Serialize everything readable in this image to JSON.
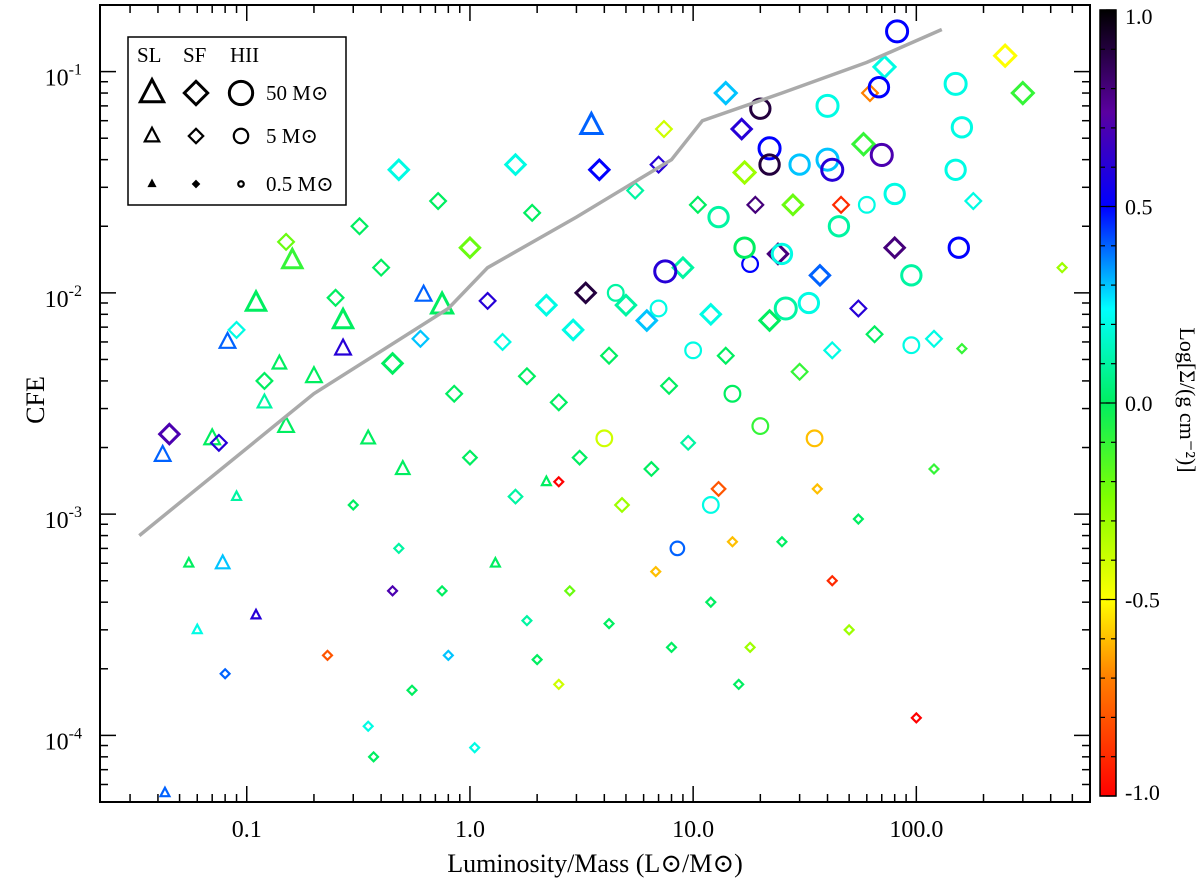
{
  "chart_data": {
    "type": "scatter",
    "title": "",
    "xlabel": "Luminosity/Mass (L⊙/M⊙)",
    "ylabel": "CFE",
    "xscale": "log",
    "yscale": "log",
    "xlim": [
      0.022,
      600
    ],
    "ylim": [
      5e-05,
      0.2
    ],
    "x_tick_labels": [
      "0.1",
      "1.0",
      "10.0",
      "100.0"
    ],
    "y_tick_labels": [
      {
        "base": "10",
        "exp": "-4"
      },
      {
        "base": "10",
        "exp": "-3"
      },
      {
        "base": "10",
        "exp": "-2"
      },
      {
        "base": "10",
        "exp": "-1"
      }
    ],
    "colorbar": {
      "label": "Log[Σ/(g cm⁻²)]",
      "range": [
        -1.0,
        1.0
      ],
      "tick_labels": [
        "1.0",
        "0.5",
        "0.0",
        "-0.5",
        "-1.0"
      ],
      "colormap": "rainbow"
    },
    "legend": {
      "position": "top-left",
      "headers": [
        "SL",
        "SF",
        "HII"
      ],
      "mass_labels": [
        "50 M⊙",
        "5 M⊙",
        "0.5 M⊙"
      ]
    },
    "upper_envelope_line": {
      "color": "#aaaaaa",
      "points": [
        {
          "x": 0.033,
          "y": 0.0008
        },
        {
          "x": 0.2,
          "y": 0.0035
        },
        {
          "x": 0.8,
          "y": 0.0085
        },
        {
          "x": 1.2,
          "y": 0.013
        },
        {
          "x": 3.0,
          "y": 0.022
        },
        {
          "x": 8.0,
          "y": 0.04
        },
        {
          "x": 11.0,
          "y": 0.06
        },
        {
          "x": 25.0,
          "y": 0.08
        },
        {
          "x": 60.0,
          "y": 0.11
        },
        {
          "x": 130.0,
          "y": 0.155
        }
      ]
    },
    "series": [
      {
        "name": "SL",
        "marker": "triangle",
        "points": [
          {
            "x": 0.042,
            "y": 0.00185,
            "c": 0.4,
            "m": 5
          },
          {
            "x": 0.07,
            "y": 0.0022,
            "c": 0.0,
            "m": 5
          },
          {
            "x": 0.082,
            "y": 0.006,
            "c": 0.4,
            "m": 5
          },
          {
            "x": 0.11,
            "y": 0.009,
            "c": 0.0,
            "m": 12
          },
          {
            "x": 0.16,
            "y": 0.014,
            "c": -0.1,
            "m": 12
          },
          {
            "x": 0.27,
            "y": 0.0075,
            "c": 0.0,
            "m": 12
          },
          {
            "x": 0.27,
            "y": 0.0056,
            "c": 0.6,
            "m": 5
          },
          {
            "x": 0.62,
            "y": 0.0098,
            "c": 0.4,
            "m": 5
          },
          {
            "x": 0.75,
            "y": 0.0088,
            "c": 0.0,
            "m": 18
          },
          {
            "x": 3.5,
            "y": 0.057,
            "c": 0.4,
            "m": 18
          },
          {
            "x": 0.12,
            "y": 0.0032,
            "c": 0.1,
            "m": 3
          },
          {
            "x": 0.15,
            "y": 0.0025,
            "c": 0.0,
            "m": 5
          },
          {
            "x": 0.2,
            "y": 0.0042,
            "c": 0.0,
            "m": 5
          },
          {
            "x": 0.09,
            "y": 0.0012,
            "c": 0.1,
            "m": 1
          },
          {
            "x": 0.055,
            "y": 0.0006,
            "c": 0.0,
            "m": 1
          },
          {
            "x": 0.078,
            "y": 0.0006,
            "c": 0.3,
            "m": 3
          },
          {
            "x": 0.11,
            "y": 0.00035,
            "c": 0.6,
            "m": 1
          },
          {
            "x": 0.06,
            "y": 0.0003,
            "c": 0.2,
            "m": 1
          },
          {
            "x": 0.043,
            "y": 5.5e-05,
            "c": 0.4,
            "m": 1
          },
          {
            "x": 1.3,
            "y": 0.0006,
            "c": 0.0,
            "m": 1
          },
          {
            "x": 2.2,
            "y": 0.0014,
            "c": 0.0,
            "m": 1
          },
          {
            "x": 0.35,
            "y": 0.0022,
            "c": 0.0,
            "m": 3
          },
          {
            "x": 0.5,
            "y": 0.0016,
            "c": 0.0,
            "m": 3
          },
          {
            "x": 0.14,
            "y": 0.0048,
            "c": 0.0,
            "m": 3
          }
        ]
      },
      {
        "name": "SF",
        "marker": "diamond",
        "points": [
          {
            "x": 0.045,
            "y": 0.0023,
            "c": 0.7,
            "m": 12
          },
          {
            "x": 0.075,
            "y": 0.0021,
            "c": 0.6,
            "m": 5
          },
          {
            "x": 0.15,
            "y": 0.017,
            "c": -0.2,
            "m": 5
          },
          {
            "x": 0.32,
            "y": 0.02,
            "c": 0.0,
            "m": 5
          },
          {
            "x": 0.48,
            "y": 0.036,
            "c": 0.2,
            "m": 12
          },
          {
            "x": 0.72,
            "y": 0.026,
            "c": 0.0,
            "m": 5
          },
          {
            "x": 1.0,
            "y": 0.016,
            "c": -0.2,
            "m": 12
          },
          {
            "x": 1.2,
            "y": 0.0092,
            "c": 0.6,
            "m": 5
          },
          {
            "x": 1.6,
            "y": 0.038,
            "c": 0.2,
            "m": 12
          },
          {
            "x": 1.9,
            "y": 0.023,
            "c": 0.0,
            "m": 5
          },
          {
            "x": 2.2,
            "y": 0.0088,
            "c": 0.2,
            "m": 12
          },
          {
            "x": 3.3,
            "y": 0.01,
            "c": 0.9,
            "m": 12
          },
          {
            "x": 3.8,
            "y": 0.036,
            "c": 0.5,
            "m": 12
          },
          {
            "x": 5.5,
            "y": 0.029,
            "c": 0.1,
            "m": 5
          },
          {
            "x": 7.0,
            "y": 0.038,
            "c": 0.6,
            "m": 5
          },
          {
            "x": 7.4,
            "y": 0.055,
            "c": -0.4,
            "m": 5
          },
          {
            "x": 10.5,
            "y": 0.025,
            "c": 0.0,
            "m": 5
          },
          {
            "x": 14.0,
            "y": 0.08,
            "c": 0.3,
            "m": 18
          },
          {
            "x": 16.5,
            "y": 0.055,
            "c": 0.6,
            "m": 12
          },
          {
            "x": 17.0,
            "y": 0.035,
            "c": -0.3,
            "m": 18
          },
          {
            "x": 19.0,
            "y": 0.025,
            "c": 0.8,
            "m": 5
          },
          {
            "x": 24.0,
            "y": 0.015,
            "c": 0.8,
            "m": 12
          },
          {
            "x": 28.0,
            "y": 0.025,
            "c": -0.2,
            "m": 12
          },
          {
            "x": 37.0,
            "y": 0.012,
            "c": 0.4,
            "m": 12
          },
          {
            "x": 46.0,
            "y": 0.025,
            "c": -0.9,
            "m": 5
          },
          {
            "x": 55.0,
            "y": 0.0085,
            "c": 0.6,
            "m": 5
          },
          {
            "x": 58.0,
            "y": 0.047,
            "c": -0.1,
            "m": 18
          },
          {
            "x": 62.0,
            "y": 0.08,
            "c": -0.7,
            "m": 5
          },
          {
            "x": 72.0,
            "y": 0.105,
            "c": 0.2,
            "m": 18
          },
          {
            "x": 80.0,
            "y": 0.016,
            "c": 0.8,
            "m": 12
          },
          {
            "x": 180.0,
            "y": 0.026,
            "c": 0.2,
            "m": 5
          },
          {
            "x": 250.0,
            "y": 0.118,
            "c": -0.5,
            "m": 18
          },
          {
            "x": 300.0,
            "y": 0.08,
            "c": -0.1,
            "m": 18
          },
          {
            "x": 450.0,
            "y": 0.013,
            "c": -0.3,
            "m": 1
          },
          {
            "x": 0.12,
            "y": 0.004,
            "c": 0.0,
            "m": 5
          },
          {
            "x": 0.09,
            "y": 0.0068,
            "c": 0.2,
            "m": 5
          },
          {
            "x": 0.25,
            "y": 0.0095,
            "c": 0.0,
            "m": 5
          },
          {
            "x": 0.4,
            "y": 0.013,
            "c": 0.0,
            "m": 5
          },
          {
            "x": 0.45,
            "y": 0.0048,
            "c": 0.0,
            "m": 12
          },
          {
            "x": 0.6,
            "y": 0.0062,
            "c": 0.3,
            "m": 5
          },
          {
            "x": 0.85,
            "y": 0.0035,
            "c": 0.0,
            "m": 5
          },
          {
            "x": 1.4,
            "y": 0.006,
            "c": 0.2,
            "m": 5
          },
          {
            "x": 1.8,
            "y": 0.0042,
            "c": 0.0,
            "m": 5
          },
          {
            "x": 2.5,
            "y": 0.0032,
            "c": 0.0,
            "m": 5
          },
          {
            "x": 2.9,
            "y": 0.0068,
            "c": 0.2,
            "m": 12
          },
          {
            "x": 4.2,
            "y": 0.0052,
            "c": 0.0,
            "m": 5
          },
          {
            "x": 5.0,
            "y": 0.0088,
            "c": 0.1,
            "m": 12
          },
          {
            "x": 6.2,
            "y": 0.0075,
            "c": 0.3,
            "m": 12
          },
          {
            "x": 7.8,
            "y": 0.0038,
            "c": 0.0,
            "m": 5
          },
          {
            "x": 9.0,
            "y": 0.013,
            "c": 0.1,
            "m": 12
          },
          {
            "x": 12.0,
            "y": 0.008,
            "c": 0.2,
            "m": 12
          },
          {
            "x": 14.0,
            "y": 0.0052,
            "c": 0.0,
            "m": 5
          },
          {
            "x": 22.0,
            "y": 0.0075,
            "c": 0.0,
            "m": 12
          },
          {
            "x": 30.0,
            "y": 0.0044,
            "c": -0.1,
            "m": 5
          },
          {
            "x": 42.0,
            "y": 0.0055,
            "c": 0.2,
            "m": 5
          },
          {
            "x": 65.0,
            "y": 0.0065,
            "c": 0.0,
            "m": 5
          },
          {
            "x": 120.0,
            "y": 0.0062,
            "c": 0.2,
            "m": 5
          },
          {
            "x": 160.0,
            "y": 0.0056,
            "c": -0.1,
            "m": 1
          },
          {
            "x": 1.0,
            "y": 0.0018,
            "c": 0.0,
            "m": 3
          },
          {
            "x": 1.6,
            "y": 0.0012,
            "c": 0.1,
            "m": 3
          },
          {
            "x": 3.1,
            "y": 0.0018,
            "c": 0.0,
            "m": 3
          },
          {
            "x": 4.8,
            "y": 0.0011,
            "c": -0.3,
            "m": 3
          },
          {
            "x": 6.5,
            "y": 0.0016,
            "c": 0.0,
            "m": 3
          },
          {
            "x": 9.5,
            "y": 0.0021,
            "c": 0.1,
            "m": 3
          },
          {
            "x": 13.0,
            "y": 0.0013,
            "c": -0.8,
            "m": 3
          },
          {
            "x": 0.3,
            "y": 0.0011,
            "c": 0.0,
            "m": 1
          },
          {
            "x": 0.48,
            "y": 0.0007,
            "c": 0.1,
            "m": 1
          },
          {
            "x": 0.75,
            "y": 0.00045,
            "c": 0.0,
            "m": 1
          },
          {
            "x": 1.8,
            "y": 0.00033,
            "c": 0.1,
            "m": 1
          },
          {
            "x": 2.8,
            "y": 0.00045,
            "c": -0.2,
            "m": 1
          },
          {
            "x": 4.2,
            "y": 0.00032,
            "c": 0.0,
            "m": 1
          },
          {
            "x": 6.8,
            "y": 0.00055,
            "c": -0.6,
            "m": 1
          },
          {
            "x": 12.0,
            "y": 0.0004,
            "c": 0.0,
            "m": 1
          },
          {
            "x": 0.45,
            "y": 0.00045,
            "c": 0.7,
            "m": 1
          },
          {
            "x": 0.8,
            "y": 0.00023,
            "c": 0.3,
            "m": 1
          },
          {
            "x": 0.08,
            "y": 0.00019,
            "c": 0.4,
            "m": 1
          },
          {
            "x": 0.35,
            "y": 0.00011,
            "c": 0.2,
            "m": 1
          },
          {
            "x": 0.37,
            "y": 8e-05,
            "c": 0.0,
            "m": 1
          },
          {
            "x": 1.05,
            "y": 8.8e-05,
            "c": 0.2,
            "m": 1
          },
          {
            "x": 2.0,
            "y": 0.00022,
            "c": 0.0,
            "m": 1
          },
          {
            "x": 16.0,
            "y": 0.00017,
            "c": 0.0,
            "m": 1
          },
          {
            "x": 42.0,
            "y": 0.0005,
            "c": -0.9,
            "m": 1
          },
          {
            "x": 100.0,
            "y": 0.00012,
            "c": -1.0,
            "m": 1
          },
          {
            "x": 50.0,
            "y": 0.0003,
            "c": -0.3,
            "m": 1
          },
          {
            "x": 120.0,
            "y": 0.0016,
            "c": -0.1,
            "m": 1
          },
          {
            "x": 55.0,
            "y": 0.00095,
            "c": 0.0,
            "m": 1
          },
          {
            "x": 25.0,
            "y": 0.00075,
            "c": 0.0,
            "m": 1
          },
          {
            "x": 36.0,
            "y": 0.0013,
            "c": -0.6,
            "m": 1
          },
          {
            "x": 0.23,
            "y": 0.00023,
            "c": -0.8,
            "m": 1
          },
          {
            "x": 0.55,
            "y": 0.00016,
            "c": 0.0,
            "m": 1
          },
          {
            "x": 2.5,
            "y": 0.00017,
            "c": -0.4,
            "m": 1
          },
          {
            "x": 8.0,
            "y": 0.00025,
            "c": 0.0,
            "m": 1
          },
          {
            "x": 18.0,
            "y": 0.00025,
            "c": -0.3,
            "m": 1
          },
          {
            "x": 2.5,
            "y": 0.0014,
            "c": -1.0,
            "m": 1
          },
          {
            "x": 15.0,
            "y": 0.00075,
            "c": -0.6,
            "m": 1
          }
        ]
      },
      {
        "name": "HII",
        "marker": "circle",
        "points": [
          {
            "x": 7.5,
            "y": 0.0125,
            "c": 0.6,
            "m": 18
          },
          {
            "x": 20.0,
            "y": 0.068,
            "c": 0.9,
            "m": 12
          },
          {
            "x": 22.0,
            "y": 0.045,
            "c": 0.5,
            "m": 18
          },
          {
            "x": 22.0,
            "y": 0.038,
            "c": 0.9,
            "m": 12
          },
          {
            "x": 30.0,
            "y": 0.038,
            "c": 0.3,
            "m": 12
          },
          {
            "x": 40.0,
            "y": 0.07,
            "c": 0.2,
            "m": 18
          },
          {
            "x": 40.0,
            "y": 0.04,
            "c": 0.3,
            "m": 18
          },
          {
            "x": 42.0,
            "y": 0.036,
            "c": 0.6,
            "m": 18
          },
          {
            "x": 68.0,
            "y": 0.085,
            "c": 0.5,
            "m": 12
          },
          {
            "x": 70.0,
            "y": 0.042,
            "c": 0.7,
            "m": 18
          },
          {
            "x": 80.0,
            "y": 0.028,
            "c": 0.2,
            "m": 12
          },
          {
            "x": 82.0,
            "y": 0.152,
            "c": 0.5,
            "m": 18
          },
          {
            "x": 150.0,
            "y": 0.088,
            "c": 0.2,
            "m": 18
          },
          {
            "x": 150.0,
            "y": 0.036,
            "c": 0.2,
            "m": 12
          },
          {
            "x": 155.0,
            "y": 0.016,
            "c": 0.5,
            "m": 12
          },
          {
            "x": 160.0,
            "y": 0.056,
            "c": 0.2,
            "m": 12
          },
          {
            "x": 25.0,
            "y": 0.015,
            "c": 0.2,
            "m": 12
          },
          {
            "x": 26.0,
            "y": 0.0085,
            "c": 0.1,
            "m": 18
          },
          {
            "x": 18.0,
            "y": 0.0135,
            "c": 0.5,
            "m": 5
          },
          {
            "x": 33.0,
            "y": 0.009,
            "c": 0.2,
            "m": 12
          },
          {
            "x": 45.0,
            "y": 0.02,
            "c": 0.1,
            "m": 12
          },
          {
            "x": 60.0,
            "y": 0.025,
            "c": 0.2,
            "m": 5
          },
          {
            "x": 95.0,
            "y": 0.012,
            "c": 0.1,
            "m": 12
          },
          {
            "x": 95.0,
            "y": 0.0058,
            "c": 0.2,
            "m": 5
          },
          {
            "x": 13.0,
            "y": 0.022,
            "c": 0.1,
            "m": 12
          },
          {
            "x": 7.0,
            "y": 0.0085,
            "c": 0.2,
            "m": 5
          },
          {
            "x": 10.0,
            "y": 0.0055,
            "c": 0.2,
            "m": 5
          },
          {
            "x": 15.0,
            "y": 0.0035,
            "c": 0.0,
            "m": 5
          },
          {
            "x": 20.0,
            "y": 0.0025,
            "c": -0.1,
            "m": 5
          },
          {
            "x": 35.0,
            "y": 0.0022,
            "c": -0.6,
            "m": 5
          },
          {
            "x": 12.0,
            "y": 0.0011,
            "c": 0.2,
            "m": 5
          },
          {
            "x": 8.5,
            "y": 0.0007,
            "c": 0.4,
            "m": 3
          },
          {
            "x": 4.0,
            "y": 0.0022,
            "c": -0.4,
            "m": 5
          },
          {
            "x": 17.0,
            "y": 0.016,
            "c": 0.0,
            "m": 12
          },
          {
            "x": 4.5,
            "y": 0.01,
            "c": 0.1,
            "m": 5
          }
        ]
      }
    ]
  }
}
